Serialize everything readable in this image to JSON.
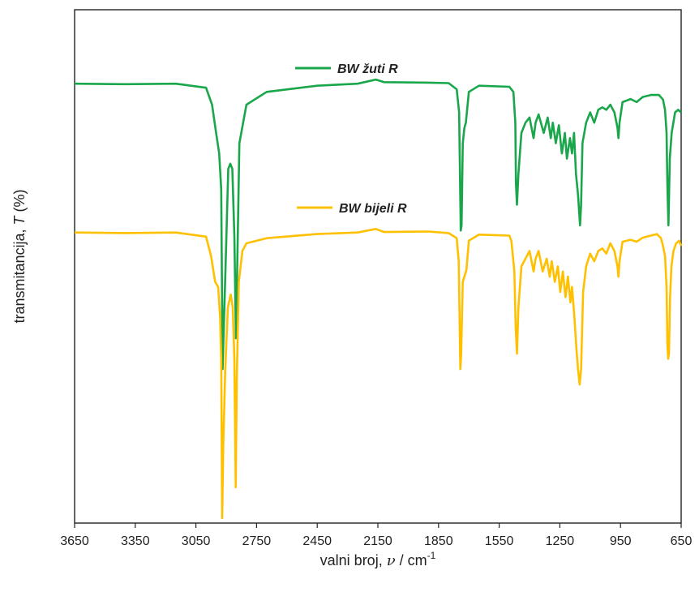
{
  "chart_data": {
    "type": "line",
    "title": "",
    "xlabel_parts": [
      "valni broj, ",
      "ν",
      " / cm",
      "-1"
    ],
    "ylabel_parts": [
      "transmitancija, ",
      "T",
      " (%)"
    ],
    "x_reversed": true,
    "xlim": [
      3650,
      650
    ],
    "x_ticks": [
      "3650",
      "3350",
      "3050",
      "2750",
      "2450",
      "2150",
      "1850",
      "1550",
      "1250",
      "950",
      "650"
    ],
    "y_ticks_shown": false,
    "grid": false,
    "legend": "inline labels above each curve",
    "series": [
      {
        "name": "BW žuti R",
        "color": "#1aa64a",
        "y_unit": "relative transmittance (0 = bottom, 100 = top of plot)",
        "points": [
          [
            3650,
            85.6
          ],
          [
            3400,
            85.5
          ],
          [
            3150,
            85.6
          ],
          [
            3000,
            84.8
          ],
          [
            2970,
            81.5
          ],
          [
            2950,
            76
          ],
          [
            2935,
            72
          ],
          [
            2925,
            65
          ],
          [
            2918,
            30
          ],
          [
            2905,
            48
          ],
          [
            2890,
            69
          ],
          [
            2880,
            70
          ],
          [
            2870,
            69
          ],
          [
            2860,
            56
          ],
          [
            2852,
            36
          ],
          [
            2848,
            45
          ],
          [
            2835,
            74
          ],
          [
            2800,
            81.5
          ],
          [
            2700,
            84
          ],
          [
            2450,
            85.2
          ],
          [
            2250,
            85.6
          ],
          [
            2160,
            86.4
          ],
          [
            2120,
            85.9
          ],
          [
            1900,
            85.8
          ],
          [
            1800,
            85.7
          ],
          [
            1760,
            84.5
          ],
          [
            1748,
            80
          ],
          [
            1740,
            57
          ],
          [
            1736,
            58
          ],
          [
            1730,
            74
          ],
          [
            1722,
            77
          ],
          [
            1715,
            78
          ],
          [
            1700,
            84
          ],
          [
            1650,
            85.2
          ],
          [
            1500,
            85
          ],
          [
            1480,
            84
          ],
          [
            1470,
            78
          ],
          [
            1467,
            66
          ],
          [
            1462,
            62
          ],
          [
            1455,
            68
          ],
          [
            1440,
            76
          ],
          [
            1420,
            78
          ],
          [
            1400,
            79
          ],
          [
            1380,
            75
          ],
          [
            1370,
            78
          ],
          [
            1355,
            79.6
          ],
          [
            1330,
            76
          ],
          [
            1310,
            79
          ],
          [
            1295,
            75
          ],
          [
            1285,
            78
          ],
          [
            1270,
            74
          ],
          [
            1255,
            77.5
          ],
          [
            1240,
            72
          ],
          [
            1225,
            76
          ],
          [
            1215,
            71
          ],
          [
            1200,
            75
          ],
          [
            1190,
            72
          ],
          [
            1180,
            76
          ],
          [
            1170,
            68
          ],
          [
            1160,
            64
          ],
          [
            1150,
            58
          ],
          [
            1145,
            62
          ],
          [
            1138,
            74
          ],
          [
            1120,
            78
          ],
          [
            1100,
            80
          ],
          [
            1080,
            78
          ],
          [
            1060,
            80.5
          ],
          [
            1040,
            81
          ],
          [
            1020,
            80.5
          ],
          [
            1000,
            81.5
          ],
          [
            980,
            80
          ],
          [
            965,
            77
          ],
          [
            960,
            75
          ],
          [
            955,
            78
          ],
          [
            940,
            82
          ],
          [
            900,
            82.6
          ],
          [
            870,
            82
          ],
          [
            840,
            83
          ],
          [
            800,
            83.4
          ],
          [
            760,
            83.4
          ],
          [
            740,
            82.5
          ],
          [
            730,
            80.5
          ],
          [
            722,
            76
          ],
          [
            718,
            66
          ],
          [
            713,
            58
          ],
          [
            706,
            71
          ],
          [
            697,
            76
          ],
          [
            680,
            80
          ],
          [
            665,
            80.5
          ],
          [
            650,
            80
          ]
        ]
      },
      {
        "name": "BW bijeli R",
        "color": "#ffc000",
        "y_unit": "relative transmittance (0 = bottom, 100 = top of plot)",
        "points": [
          [
            3650,
            56.6
          ],
          [
            3400,
            56.5
          ],
          [
            3150,
            56.6
          ],
          [
            3000,
            55.8
          ],
          [
            2975,
            52
          ],
          [
            2955,
            47
          ],
          [
            2940,
            46
          ],
          [
            2930,
            40
          ],
          [
            2925,
            32
          ],
          [
            2920,
            1
          ],
          [
            2915,
            15
          ],
          [
            2905,
            30
          ],
          [
            2892,
            42
          ],
          [
            2878,
            44.5
          ],
          [
            2868,
            42
          ],
          [
            2860,
            32
          ],
          [
            2853,
            7
          ],
          [
            2848,
            28
          ],
          [
            2838,
            47
          ],
          [
            2820,
            53
          ],
          [
            2800,
            54.5
          ],
          [
            2700,
            55.5
          ],
          [
            2450,
            56.3
          ],
          [
            2250,
            56.6
          ],
          [
            2160,
            57.3
          ],
          [
            2120,
            56.7
          ],
          [
            1900,
            56.8
          ],
          [
            1800,
            56.5
          ],
          [
            1760,
            55.5
          ],
          [
            1750,
            51
          ],
          [
            1742,
            30
          ],
          [
            1738,
            33
          ],
          [
            1730,
            47
          ],
          [
            1722,
            48
          ],
          [
            1712,
            49.3
          ],
          [
            1700,
            55
          ],
          [
            1650,
            56.2
          ],
          [
            1500,
            56
          ],
          [
            1490,
            55
          ],
          [
            1475,
            49
          ],
          [
            1468,
            38
          ],
          [
            1462,
            33
          ],
          [
            1455,
            42
          ],
          [
            1440,
            50
          ],
          [
            1420,
            51.5
          ],
          [
            1400,
            53
          ],
          [
            1380,
            49
          ],
          [
            1370,
            51.5
          ],
          [
            1355,
            53
          ],
          [
            1335,
            49
          ],
          [
            1315,
            51.5
          ],
          [
            1300,
            48
          ],
          [
            1290,
            51
          ],
          [
            1275,
            47
          ],
          [
            1260,
            50
          ],
          [
            1248,
            45
          ],
          [
            1235,
            49
          ],
          [
            1222,
            44
          ],
          [
            1210,
            48
          ],
          [
            1198,
            43
          ],
          [
            1190,
            46
          ],
          [
            1178,
            40
          ],
          [
            1168,
            34
          ],
          [
            1160,
            30
          ],
          [
            1152,
            27
          ],
          [
            1145,
            30
          ],
          [
            1135,
            45
          ],
          [
            1120,
            50
          ],
          [
            1100,
            52.5
          ],
          [
            1080,
            51
          ],
          [
            1060,
            53
          ],
          [
            1040,
            53.5
          ],
          [
            1020,
            52.5
          ],
          [
            1000,
            54.5
          ],
          [
            980,
            53
          ],
          [
            965,
            50
          ],
          [
            960,
            48
          ],
          [
            955,
            51
          ],
          [
            940,
            54.8
          ],
          [
            900,
            55.2
          ],
          [
            870,
            54.8
          ],
          [
            840,
            55.6
          ],
          [
            800,
            56
          ],
          [
            770,
            56.3
          ],
          [
            750,
            55.5
          ],
          [
            740,
            54
          ],
          [
            730,
            52
          ],
          [
            722,
            46
          ],
          [
            718,
            35
          ],
          [
            714,
            32
          ],
          [
            710,
            33
          ],
          [
            705,
            44
          ],
          [
            698,
            50
          ],
          [
            688,
            53
          ],
          [
            675,
            54.5
          ],
          [
            660,
            55
          ],
          [
            650,
            54
          ]
        ]
      }
    ]
  }
}
